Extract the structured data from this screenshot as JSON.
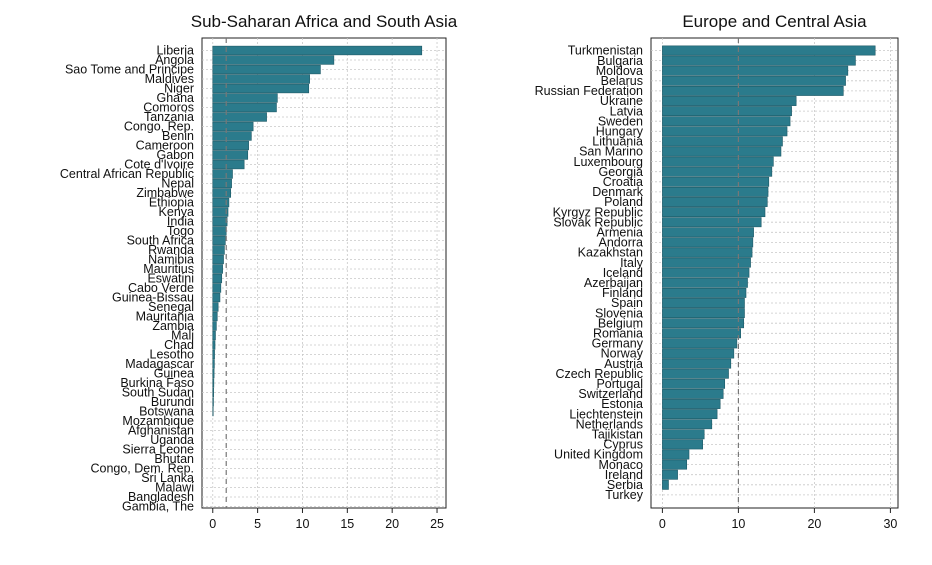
{
  "chart_data": [
    {
      "type": "bar",
      "orientation": "horizontal",
      "title": "Sub-Saharan Africa and South Asia",
      "xlabel": "",
      "ylabel": "",
      "xlim": [
        -1.2,
        26
      ],
      "xticks": [
        0,
        5,
        10,
        15,
        20,
        25
      ],
      "reference_line": 1.5,
      "grid": true,
      "bar_color": "#2b7b8c",
      "categories": [
        "Liberia",
        "Angola",
        "Sao Tome and Principe",
        "Maldives",
        "Niger",
        "Ghana",
        "Comoros",
        "Tanzania",
        "Congo, Rep.",
        "Benin",
        "Cameroon",
        "Gabon",
        "Cote d'Ivoire",
        "Central African Republic",
        "Nepal",
        "Zimbabwe",
        "Ethiopia",
        "Kenya",
        "India",
        "Togo",
        "South Africa",
        "Rwanda",
        "Namibia",
        "Mauritius",
        "Eswatini",
        "Cabo Verde",
        "Guinea-Bissau",
        "Senegal",
        "Mauritania",
        "Zambia",
        "Mali",
        "Chad",
        "Lesotho",
        "Madagascar",
        "Guinea",
        "Burkina Faso",
        "South Sudan",
        "Burundi",
        "Botswana",
        "Mozambique",
        "Afghanistan",
        "Uganda",
        "Sierra Leone",
        "Bhutan",
        "Congo, Dem. Rep.",
        "Sri Lanka",
        "Malawi",
        "Bangladesh",
        "Gambia, The"
      ],
      "values": [
        23.3,
        13.5,
        12.0,
        10.8,
        10.7,
        7.2,
        7.1,
        6.0,
        4.5,
        4.3,
        4.0,
        3.9,
        3.5,
        2.2,
        2.1,
        2.0,
        1.8,
        1.7,
        1.6,
        1.5,
        1.4,
        1.3,
        1.2,
        1.1,
        1.0,
        0.9,
        0.8,
        0.6,
        0.5,
        0.4,
        0.3,
        0.25,
        0.2,
        0.18,
        0.15,
        0.12,
        0.1,
        0.08,
        0.05,
        0,
        0,
        0,
        0,
        0,
        0,
        0,
        0,
        0,
        0
      ]
    },
    {
      "type": "bar",
      "orientation": "horizontal",
      "title": "Europe and Central Asia",
      "xlabel": "",
      "ylabel": "",
      "xlim": [
        -1.5,
        31
      ],
      "xticks": [
        0,
        10,
        20,
        30
      ],
      "reference_line": 10,
      "grid": true,
      "bar_color": "#2b7b8c",
      "categories": [
        "Turkmenistan",
        "Bulgaria",
        "Moldova",
        "Belarus",
        "Russian Federation",
        "Ukraine",
        "Latvia",
        "Sweden",
        "Hungary",
        "Lithuania",
        "San Marino",
        "Luxembourg",
        "Georgia",
        "Croatia",
        "Denmark",
        "Poland",
        "Kyrgyz Republic",
        "Slovak Republic",
        "Armenia",
        "Andorra",
        "Kazakhstan",
        "Italy",
        "Iceland",
        "Azerbaijan",
        "Finland",
        "Spain",
        "Slovenia",
        "Belgium",
        "Romania",
        "Germany",
        "Norway",
        "Austria",
        "Czech Republic",
        "Portugal",
        "Switzerland",
        "Estonia",
        "Liechtenstein",
        "Netherlands",
        "Tajikistan",
        "Cyprus",
        "United Kingdom",
        "Monaco",
        "Ireland",
        "Serbia",
        "Turkey"
      ],
      "values": [
        28.0,
        25.4,
        24.4,
        24.1,
        23.8,
        17.6,
        17.0,
        16.8,
        16.4,
        15.8,
        15.6,
        14.6,
        14.4,
        14.0,
        13.9,
        13.8,
        13.5,
        13.0,
        12.0,
        11.9,
        11.8,
        11.6,
        11.4,
        11.2,
        11.0,
        10.8,
        10.8,
        10.7,
        10.3,
        9.8,
        9.4,
        9.0,
        8.7,
        8.2,
        8.0,
        7.6,
        7.2,
        6.5,
        5.5,
        5.3,
        3.5,
        3.2,
        2.0,
        0.8,
        0
      ]
    }
  ]
}
